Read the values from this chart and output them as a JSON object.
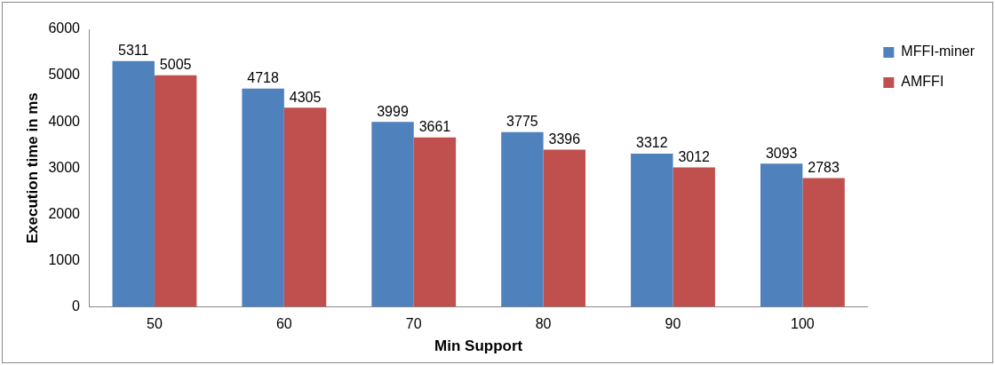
{
  "chart_data": {
    "type": "bar",
    "xlabel": "Min Support",
    "ylabel": "Execution time in ms",
    "categories": [
      "50",
      "60",
      "70",
      "80",
      "90",
      "100"
    ],
    "series": [
      {
        "name": "MFFI-miner",
        "color": "#4f81bd",
        "values": [
          5311,
          4718,
          3999,
          3775,
          3312,
          3093
        ]
      },
      {
        "name": "AMFFI",
        "color": "#c0504d",
        "values": [
          5005,
          4305,
          3661,
          3396,
          3012,
          2783
        ]
      }
    ],
    "ylim": [
      0,
      6000
    ],
    "yticks": [
      0,
      1000,
      2000,
      3000,
      4000,
      5000,
      6000
    ],
    "grid": false,
    "legend": "right",
    "data_labels": true
  }
}
